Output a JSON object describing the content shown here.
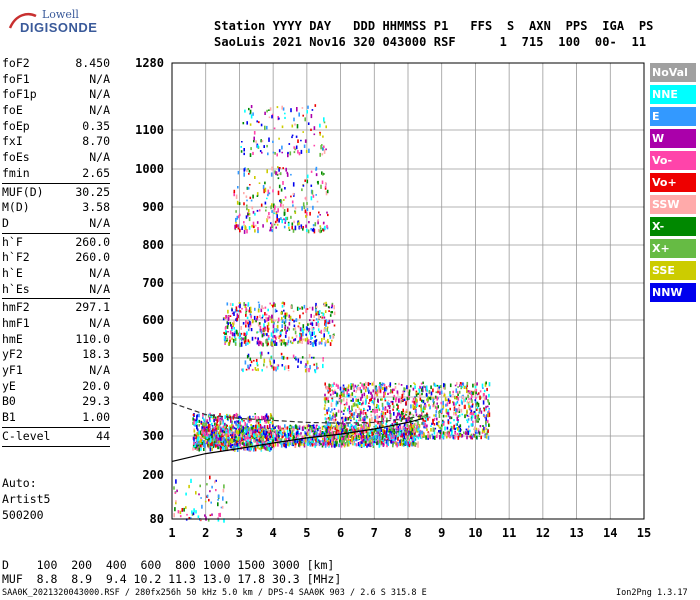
{
  "logo": {
    "line1": "Lowell",
    "line2": "DIGISONDE"
  },
  "header": {
    "line1": "Station YYYY DAY   DDD HHMMSS P1   FFS  S  AXN  PPS  IGA  PS",
    "line2": "SaoLuis 2021 Nov16 320 043000 RSF      1  715  100  00-  11"
  },
  "param_groups": [
    [
      {
        "name": "foF2",
        "value": "8.450"
      },
      {
        "name": "foF1",
        "value": "N/A"
      },
      {
        "name": "foF1p",
        "value": "N/A"
      },
      {
        "name": "foE",
        "value": "N/A"
      },
      {
        "name": "foEp",
        "value": "0.35"
      },
      {
        "name": "fxI",
        "value": "8.70"
      },
      {
        "name": "foEs",
        "value": "N/A"
      },
      {
        "name": "fmin",
        "value": "2.65"
      }
    ],
    [
      {
        "name": "MUF(D)",
        "value": "30.25"
      },
      {
        "name": "M(D)",
        "value": "3.58"
      },
      {
        "name": "D",
        "value": "N/A"
      }
    ],
    [
      {
        "name": "h`F",
        "value": "260.0"
      },
      {
        "name": "h`F2",
        "value": "260.0"
      },
      {
        "name": "h`E",
        "value": "N/A"
      },
      {
        "name": "h`Es",
        "value": "N/A"
      }
    ],
    [
      {
        "name": "hmF2",
        "value": "297.1"
      },
      {
        "name": "hmF1",
        "value": "N/A"
      },
      {
        "name": "hmE",
        "value": "110.0"
      },
      {
        "name": "yF2",
        "value": "18.3"
      },
      {
        "name": "yF1",
        "value": "N/A"
      },
      {
        "name": "yE",
        "value": "20.0"
      },
      {
        "name": "B0",
        "value": "29.3"
      },
      {
        "name": "B1",
        "value": "1.00"
      }
    ],
    [
      {
        "name": "C-level",
        "value": "44"
      }
    ]
  ],
  "auto": {
    "line1": "Auto:",
    "line2": "Artist5",
    "line3": "500200"
  },
  "legend": [
    {
      "label": "NoVal",
      "color": "#a0a0a0"
    },
    {
      "label": "NNE",
      "color": "#00ffff"
    },
    {
      "label": "E",
      "color": "#3399ff"
    },
    {
      "label": "W",
      "color": "#aa00aa"
    },
    {
      "label": "Vo-",
      "color": "#ff44aa"
    },
    {
      "label": "Vo+",
      "color": "#ee0000"
    },
    {
      "label": "SSW",
      "color": "#ffaaaa"
    },
    {
      "label": "X-",
      "color": "#008800"
    },
    {
      "label": "X+",
      "color": "#66bb44"
    },
    {
      "label": "SSE",
      "color": "#cccc00"
    },
    {
      "label": "NNW",
      "color": "#0000ee"
    }
  ],
  "footer": {
    "line1": "D    100  200  400  600  800 1000 1500 3000 [km]",
    "line2": "MUF  8.8  8.9  9.4 10.2 11.3 13.0 17.8 30.3 [MHz]",
    "line3": "SAA0K_2021320043000.RSF / 280fx256h 50 kHz 5.0 km / DPS-4 SAA0K 903 / 2.6 S 315.8 E",
    "version": "Ion2Png 1.3.17"
  },
  "chart_data": {
    "type": "scatter",
    "title": "",
    "xlabel": "",
    "ylabel": "",
    "xlim": [
      1,
      15
    ],
    "ylim": [
      80,
      1280
    ],
    "x_ticks": [
      1,
      2,
      3,
      4,
      5,
      6,
      7,
      8,
      9,
      10,
      11,
      12,
      13,
      14,
      15
    ],
    "x_tick_labels": [
      "1",
      "2",
      "3",
      "4",
      "5",
      "6",
      "7",
      "8",
      "9",
      "10",
      "11",
      "12",
      "13",
      "14",
      "15"
    ],
    "y_ticks": [
      80,
      200,
      300,
      400,
      500,
      600,
      700,
      800,
      900,
      1000,
      1100,
      1280
    ],
    "y_tick_labels": [
      "80",
      "200",
      "300",
      "400",
      "500",
      "600",
      "700",
      "800",
      "900",
      "1000",
      "1100",
      "1280"
    ],
    "grid": true,
    "colors": {
      "grid": "#9a9a9a",
      "trace": "#000000",
      "dashed": "#333333"
    },
    "clusters": [
      {
        "name": "F-trace-lower",
        "x": [
          1.7,
          8.3
        ],
        "y": [
          280,
          330
        ],
        "count": 1400
      },
      {
        "name": "F-trace-upper",
        "x": [
          5.5,
          10.4
        ],
        "y": [
          300,
          440
        ],
        "count": 1300
      },
      {
        "name": "F-spread-left",
        "x": [
          1.6,
          4.0
        ],
        "y": [
          270,
          360
        ],
        "count": 600
      },
      {
        "name": "second-hop",
        "x": [
          2.5,
          5.8
        ],
        "y": [
          540,
          650
        ],
        "count": 500
      },
      {
        "name": "third-hop",
        "x": [
          2.8,
          5.6
        ],
        "y": [
          840,
          1010
        ],
        "count": 260
      },
      {
        "name": "fourth-hop",
        "x": [
          3.0,
          5.6
        ],
        "y": [
          1040,
          1170
        ],
        "count": 120
      },
      {
        "name": "mid-band",
        "x": [
          3.0,
          5.5
        ],
        "y": [
          470,
          520
        ],
        "count": 80
      },
      {
        "name": "E-region",
        "x": [
          1.0,
          2.6
        ],
        "y": [
          80,
          200
        ],
        "count": 70
      }
    ],
    "curves": [
      {
        "name": "profile-solid",
        "x": [
          1,
          2,
          3,
          4,
          5,
          6,
          7,
          8,
          8.45
        ],
        "y": [
          235,
          255,
          268,
          282,
          295,
          305,
          318,
          335,
          345
        ]
      },
      {
        "name": "profile-dashed",
        "x": [
          1,
          2,
          3,
          4,
          5,
          6,
          7,
          8,
          8.6
        ],
        "y": [
          385,
          355,
          345,
          340,
          335,
          333,
          335,
          345,
          355
        ]
      }
    ]
  }
}
